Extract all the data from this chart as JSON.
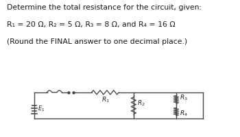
{
  "line1": "Determine the total resistance for the circuit, given:",
  "line2a": "R",
  "line2b": " = 20 Ω, R",
  "line2c": " = 5 Ω, R",
  "line2d": " = 8 Ω, and R",
  "line2e": " = 16 Ω",
  "line3": "(Round the FINAL answer to one decimal place.)",
  "bg_color": "#ffffff",
  "text_color": "#1a1a1a",
  "circuit_color": "#4a4a4a",
  "font_size_main": 7.8,
  "font_size_label": 6.5,
  "font_size_sub": 5.5
}
